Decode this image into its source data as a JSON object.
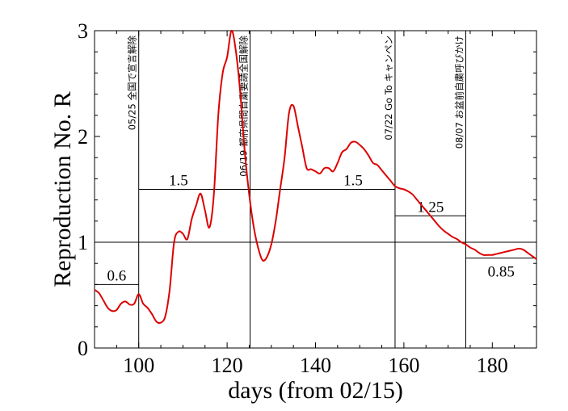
{
  "chart_data": {
    "type": "line",
    "xlabel": "days (from 02/15)",
    "ylabel": "Reproduction No.  R",
    "xlim": [
      90,
      190
    ],
    "ylim": [
      0,
      3
    ],
    "xticks": [
      100,
      120,
      140,
      160,
      180
    ],
    "yticks": [
      0,
      1,
      2,
      3
    ],
    "grid": false,
    "series": [
      {
        "color": "#dd0000",
        "x": [
          90,
          91,
          92,
          93,
          94,
          95,
          96,
          97,
          98,
          99,
          100,
          101,
          102,
          103,
          104,
          105,
          106,
          107,
          108,
          109,
          110,
          111,
          112,
          113,
          114,
          115,
          116,
          117,
          118,
          119,
          120,
          121,
          122,
          123,
          124,
          125,
          126,
          127,
          128,
          129,
          130,
          131,
          132,
          133,
          134,
          135,
          136,
          137,
          138,
          139,
          140,
          141,
          142,
          143,
          144,
          145,
          146,
          147,
          148,
          149,
          150,
          151,
          152,
          153,
          154,
          155,
          156,
          157,
          158,
          159,
          160,
          161,
          162,
          163,
          164,
          165,
          166,
          167,
          168,
          169,
          170,
          171,
          172,
          173,
          174,
          175,
          176,
          177,
          178,
          179,
          180,
          181,
          182,
          183,
          184,
          185,
          186,
          187,
          188,
          189,
          190
        ],
        "y": [
          0.55,
          0.52,
          0.45,
          0.38,
          0.35,
          0.36,
          0.42,
          0.44,
          0.41,
          0.42,
          0.51,
          0.42,
          0.38,
          0.32,
          0.25,
          0.24,
          0.3,
          0.55,
          1.0,
          1.1,
          1.08,
          1.03,
          1.22,
          1.35,
          1.46,
          1.3,
          1.14,
          1.45,
          2.2,
          2.6,
          2.75,
          3.0,
          2.8,
          2.4,
          1.85,
          1.45,
          1.15,
          0.95,
          0.83,
          0.86,
          0.98,
          1.2,
          1.5,
          1.8,
          2.22,
          2.29,
          2.1,
          1.9,
          1.7,
          1.69,
          1.67,
          1.65,
          1.7,
          1.7,
          1.67,
          1.75,
          1.85,
          1.88,
          1.94,
          1.95,
          1.92,
          1.88,
          1.82,
          1.75,
          1.73,
          1.68,
          1.63,
          1.58,
          1.53,
          1.51,
          1.5,
          1.48,
          1.45,
          1.4,
          1.35,
          1.3,
          1.25,
          1.2,
          1.15,
          1.11,
          1.08,
          1.05,
          1.03,
          1.0,
          0.98,
          0.95,
          0.93,
          0.9,
          0.88,
          0.88,
          0.88,
          0.89,
          0.9,
          0.91,
          0.92,
          0.93,
          0.94,
          0.93,
          0.9,
          0.87,
          0.84
        ]
      }
    ],
    "reference_lines": [
      {
        "y": 1.0
      }
    ],
    "event_lines": [
      {
        "x": 100,
        "label": "05/25 全国で宣言解除"
      },
      {
        "x": 125.2,
        "label": "06/19 都府県間自粛要請全国解除"
      },
      {
        "x": 158,
        "label": "07/22 Go To キャンペン"
      },
      {
        "x": 174,
        "label": "08/07 お盆前自粛呼びかけ"
      }
    ],
    "segments": [
      {
        "x0": 90,
        "x1": 100,
        "value": 0.6,
        "label": "0.6",
        "label_pos": "above"
      },
      {
        "x0": 100,
        "x1": 158,
        "value": 1.5,
        "label": "1.5",
        "label_pos": "above"
      },
      {
        "x0": 158,
        "x1": 174,
        "value": 1.25,
        "label": "1.25",
        "label_pos": "above"
      },
      {
        "x0": 174,
        "x1": 190,
        "value": 0.85,
        "label": "0.85",
        "label_pos": "below"
      }
    ],
    "segment_label_xs": [
      95,
      109,
      148.5,
      166,
      182
    ],
    "segment_label_texts": [
      "0.6",
      "1.5",
      "1.5",
      "1.25",
      "0.85"
    ]
  }
}
